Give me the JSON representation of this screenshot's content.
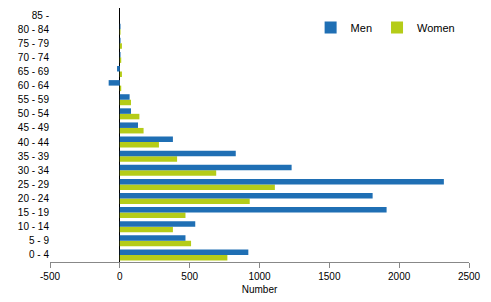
{
  "chart_data": {
    "type": "bar",
    "orientation": "horizontal",
    "x_label": "Number",
    "categories": [
      "0 - 4",
      "5 - 9",
      "10 - 14",
      "15 - 19",
      "20 - 24",
      "25 - 29",
      "30 - 34",
      "35 - 39",
      "40 - 44",
      "45 - 49",
      "50 - 54",
      "55 - 59",
      "60 - 64",
      "65 - 69",
      "70 - 74",
      "75 - 79",
      "80 - 84",
      "85 -"
    ],
    "series": [
      {
        "name": "Men",
        "color": "#1f6fb4",
        "values": [
          920,
          470,
          540,
          1910,
          1810,
          2320,
          1230,
          830,
          380,
          130,
          80,
          70,
          -80,
          -20,
          5,
          5,
          5,
          0
        ]
      },
      {
        "name": "Women",
        "color": "#b5cc18",
        "values": [
          770,
          510,
          380,
          470,
          930,
          1110,
          690,
          410,
          280,
          170,
          140,
          80,
          10,
          15,
          10,
          15,
          5,
          0
        ]
      }
    ],
    "xlim": [
      -500,
      2500
    ],
    "xticks": [
      -500,
      0,
      500,
      1000,
      1500,
      2000,
      2500
    ],
    "grid": false,
    "legend": "top right"
  }
}
